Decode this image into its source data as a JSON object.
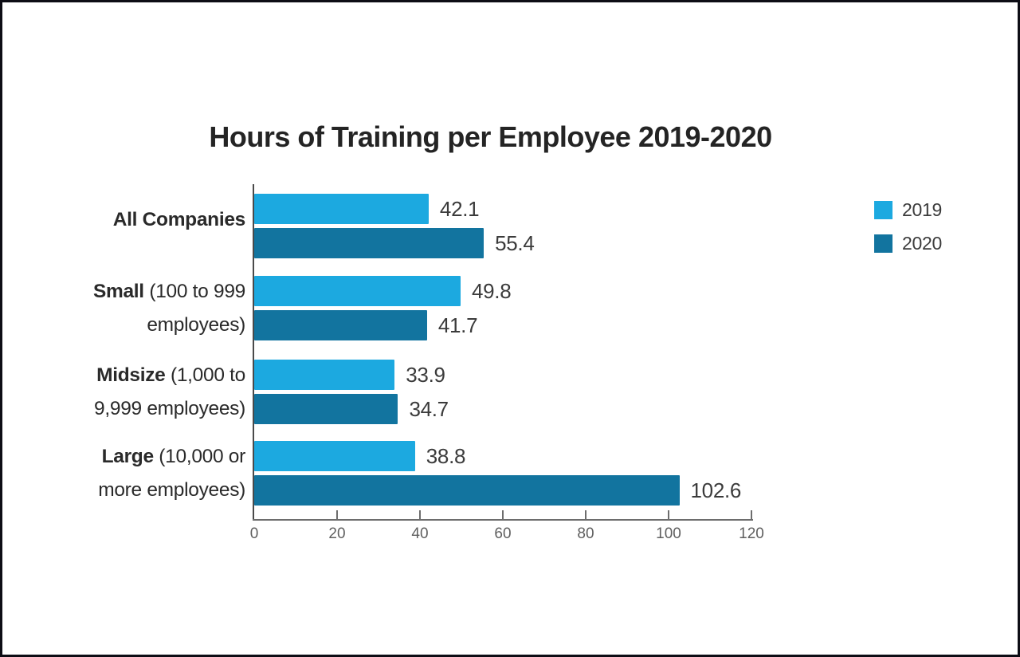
{
  "chart_data": {
    "type": "bar",
    "orientation": "horizontal",
    "title": "Hours of Training per Employee 2019-2020",
    "categories": [
      "All Companies",
      "Small (100 to 999 employees)",
      "Midsize (1,000 to 9,999 employees)",
      "Large (10,000 or more employees)"
    ],
    "category_label_lines": [
      [
        {
          "bold": "All Companies",
          "rest": ""
        }
      ],
      [
        {
          "bold": "Small",
          "rest": " (100 to 999"
        },
        {
          "bold": "",
          "rest": "employees)"
        }
      ],
      [
        {
          "bold": "Midsize",
          "rest": " (1,000 to"
        },
        {
          "bold": "",
          "rest": "9,999 employees)"
        }
      ],
      [
        {
          "bold": "Large",
          "rest": " (10,000 or"
        },
        {
          "bold": "",
          "rest": "more employees)"
        }
      ]
    ],
    "series": [
      {
        "name": "2019",
        "color": "#1ca9e0",
        "values": [
          42.1,
          49.8,
          33.9,
          38.8
        ]
      },
      {
        "name": "2020",
        "color": "#12749f",
        "values": [
          55.4,
          41.7,
          34.7,
          102.6
        ]
      }
    ],
    "value_labels": [
      [
        "42.1",
        "49.8",
        "33.9",
        "38.8"
      ],
      [
        "55.4",
        "41.7",
        "34.7",
        "102.6"
      ]
    ],
    "xlim": [
      0,
      120
    ],
    "xticks": [
      "0",
      "20",
      "40",
      "60",
      "80",
      "100",
      "120"
    ],
    "legend_position": "right",
    "grid": "off"
  }
}
